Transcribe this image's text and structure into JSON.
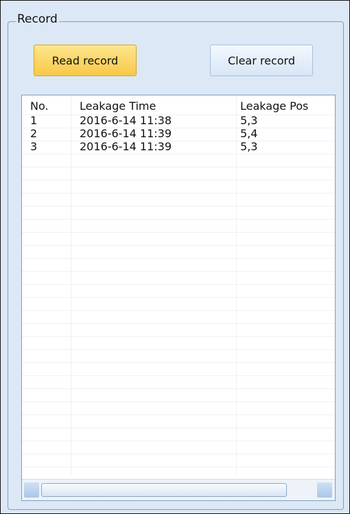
{
  "group_title": "Record",
  "buttons": [
    "Read record",
    "Clear record"
  ],
  "table": {
    "columns": [
      "No.",
      "Leakage Time",
      "Leakage Pos"
    ],
    "rows": [
      [
        "1",
        "2016-6-14 11:38",
        "5,3"
      ],
      [
        "2",
        "2016-6-14 11:39",
        "5,4"
      ],
      [
        "3",
        "2016-6-14 11:39",
        "5,3"
      ]
    ]
  }
}
